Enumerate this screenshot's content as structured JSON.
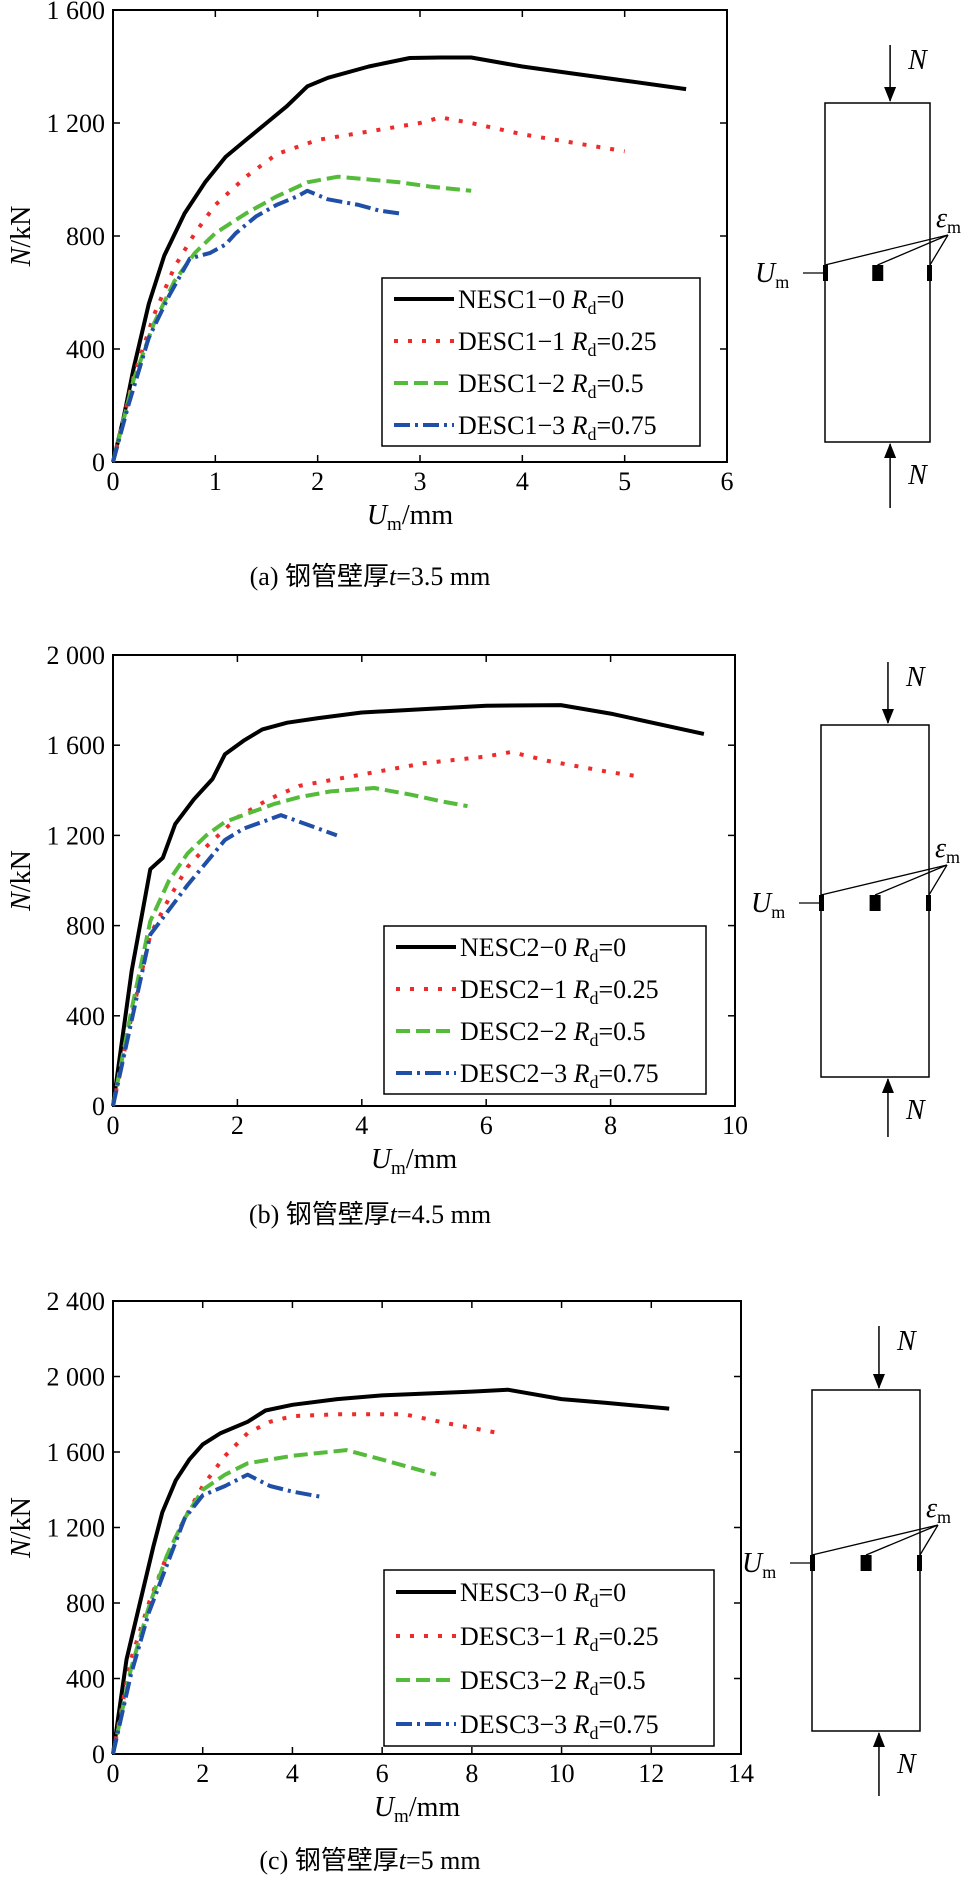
{
  "chart_data": [
    {
      "type": "line",
      "caption": {
        "prefix": "(a) 钢管壁厚",
        "var": "t",
        "suffix": "=3.5 mm"
      },
      "xlim": [
        0,
        6
      ],
      "ylim": [
        0,
        1600
      ],
      "xticks": [
        0,
        1,
        2,
        3,
        4,
        5,
        6
      ],
      "yticks": [
        0,
        400,
        800,
        1200,
        1600
      ],
      "ytick_labels": [
        "0",
        "400",
        "800",
        "1 200",
        "1 600"
      ],
      "xlabel": {
        "main": "U",
        "sub": "m",
        "rest": "/mm"
      },
      "ylabel": {
        "main": "N",
        "rest": "/kN"
      },
      "series": [
        {
          "name": "NESC1−0",
          "rd": "=0",
          "color": "#000000",
          "dash": "",
          "width": 4,
          "x": [
            0,
            0.1,
            0.2,
            0.35,
            0.5,
            0.7,
            0.9,
            1.1,
            1.3,
            1.5,
            1.7,
            1.9,
            2.1,
            2.5,
            2.9,
            3.2,
            3.5,
            4.0,
            4.5,
            5.0,
            5.6
          ],
          "y": [
            0,
            150,
            330,
            560,
            730,
            880,
            990,
            1080,
            1140,
            1200,
            1260,
            1330,
            1360,
            1400,
            1430,
            1432,
            1432,
            1400,
            1375,
            1350,
            1320
          ]
        },
        {
          "name": "DESC1−1",
          "rd": "=0.25",
          "color": "#ee2b2b",
          "dash": "4 10",
          "width": 4,
          "x": [
            0,
            0.2,
            0.4,
            0.6,
            0.8,
            1.0,
            1.3,
            1.6,
            2.0,
            2.5,
            3.0,
            3.2,
            3.5,
            4.0,
            4.5,
            5.0
          ],
          "y": [
            0,
            300,
            520,
            690,
            810,
            910,
            1010,
            1090,
            1140,
            1170,
            1200,
            1220,
            1200,
            1160,
            1130,
            1100
          ]
        },
        {
          "name": "DESC1−2",
          "rd": "=0.5",
          "color": "#55bb3a",
          "dash": "14 6",
          "width": 4,
          "x": [
            0,
            0.2,
            0.4,
            0.6,
            0.8,
            1.0,
            1.3,
            1.6,
            1.9,
            2.2,
            2.5,
            2.8,
            3.1,
            3.5
          ],
          "y": [
            0,
            290,
            490,
            640,
            740,
            810,
            880,
            940,
            990,
            1010,
            1000,
            990,
            975,
            960
          ]
        },
        {
          "name": "DESC1−3",
          "rd": "=0.75",
          "color": "#1f4fa6",
          "dash": "16 5 3 5",
          "width": 4,
          "x": [
            0,
            0.15,
            0.35,
            0.55,
            0.75,
            0.95,
            1.1,
            1.2,
            1.4,
            1.6,
            1.8,
            1.9,
            2.1,
            2.4,
            2.6,
            2.8
          ],
          "y": [
            0,
            200,
            440,
            590,
            720,
            740,
            770,
            810,
            870,
            910,
            940,
            960,
            930,
            910,
            890,
            880
          ]
        }
      ],
      "figure": {
        "force": "N",
        "um_main": "U",
        "um_sub": "m",
        "eps_main": "ε",
        "eps_sub": "m"
      }
    },
    {
      "type": "line",
      "caption": {
        "prefix": "(b) 钢管壁厚",
        "var": "t",
        "suffix": "=4.5 mm"
      },
      "xlim": [
        0,
        10
      ],
      "ylim": [
        0,
        2000
      ],
      "xticks": [
        0,
        2,
        4,
        6,
        8,
        10
      ],
      "yticks": [
        0,
        400,
        800,
        1200,
        1600,
        2000
      ],
      "ytick_labels": [
        "0",
        "400",
        "800",
        "1 200",
        "1 600",
        "2 000"
      ],
      "xlabel": {
        "main": "U",
        "sub": "m",
        "rest": "/mm"
      },
      "ylabel": {
        "main": "N",
        "rest": "/kN"
      },
      "series": [
        {
          "name": "NESC2−0",
          "rd": "=0",
          "color": "#000000",
          "dash": "",
          "width": 4,
          "x": [
            0,
            0.3,
            0.6,
            0.8,
            1.0,
            1.3,
            1.6,
            1.8,
            2.1,
            2.4,
            2.8,
            3.3,
            4.0,
            5.0,
            6.0,
            7.2,
            8.0,
            9.5
          ],
          "y": [
            0,
            600,
            1050,
            1100,
            1250,
            1360,
            1450,
            1560,
            1620,
            1670,
            1700,
            1720,
            1745,
            1760,
            1775,
            1778,
            1740,
            1650
          ]
        },
        {
          "name": "DESC2−1",
          "rd": "=0.25",
          "color": "#ee2b2b",
          "dash": "4 10",
          "width": 4,
          "x": [
            0,
            0.3,
            0.6,
            0.9,
            1.2,
            1.5,
            2.0,
            2.5,
            3.0,
            4.0,
            5.0,
            6.0,
            6.4,
            7.0,
            8.0,
            8.5
          ],
          "y": [
            0,
            400,
            760,
            920,
            1060,
            1150,
            1280,
            1360,
            1420,
            1470,
            1520,
            1550,
            1570,
            1530,
            1480,
            1460
          ]
        },
        {
          "name": "DESC2−2",
          "rd": "=0.5",
          "color": "#55bb3a",
          "dash": "14 6",
          "width": 4,
          "x": [
            0,
            0.3,
            0.6,
            0.9,
            1.2,
            1.5,
            1.8,
            2.2,
            2.6,
            3.0,
            3.5,
            4.2,
            4.8,
            5.3,
            5.7
          ],
          "y": [
            0,
            430,
            820,
            1000,
            1120,
            1200,
            1260,
            1300,
            1340,
            1370,
            1395,
            1410,
            1380,
            1350,
            1330
          ]
        },
        {
          "name": "DESC2−3",
          "rd": "=0.75",
          "color": "#1f4fa6",
          "dash": "16 5 3 5",
          "width": 4,
          "x": [
            0,
            0.3,
            0.6,
            0.9,
            1.2,
            1.5,
            1.8,
            2.1,
            2.4,
            2.7,
            3.0,
            3.3,
            3.6
          ],
          "y": [
            0,
            380,
            760,
            870,
            980,
            1080,
            1180,
            1230,
            1260,
            1290,
            1260,
            1230,
            1200
          ]
        }
      ],
      "figure": {
        "force": "N",
        "um_main": "U",
        "um_sub": "m",
        "eps_main": "ε",
        "eps_sub": "m"
      }
    },
    {
      "type": "line",
      "caption": {
        "prefix": "(c) 钢管壁厚",
        "var": "t",
        "suffix": "=5 mm"
      },
      "xlim": [
        0,
        14
      ],
      "ylim": [
        0,
        2400
      ],
      "xticks": [
        0,
        2,
        4,
        6,
        8,
        10,
        12,
        14
      ],
      "yticks": [
        0,
        400,
        800,
        1200,
        1600,
        2000,
        2400
      ],
      "ytick_labels": [
        "0",
        "400",
        "800",
        "1 200",
        "1 600",
        "2 000",
        "2 400"
      ],
      "xlabel": {
        "main": "U",
        "sub": "m",
        "rest": "/mm"
      },
      "ylabel": {
        "main": "N",
        "rest": "/kN"
      },
      "series": [
        {
          "name": "NESC3−0",
          "rd": "=0",
          "color": "#000000",
          "dash": "",
          "width": 4,
          "x": [
            0,
            0.3,
            0.6,
            0.9,
            1.1,
            1.4,
            1.7,
            2.0,
            2.4,
            3.0,
            3.4,
            4.0,
            5.0,
            6.0,
            7.0,
            8.0,
            8.8,
            10.0,
            11.0,
            12.4
          ],
          "y": [
            0,
            500,
            800,
            1100,
            1280,
            1450,
            1560,
            1640,
            1700,
            1760,
            1820,
            1850,
            1880,
            1900,
            1910,
            1920,
            1930,
            1880,
            1860,
            1830
          ]
        },
        {
          "name": "DESC3−1",
          "rd": "=0.25",
          "color": "#ee2b2b",
          "dash": "4 10",
          "width": 4,
          "x": [
            0,
            0.4,
            0.8,
            1.2,
            1.6,
            2.0,
            2.5,
            3.0,
            3.5,
            4.0,
            5.0,
            6.5,
            7.5,
            8.6
          ],
          "y": [
            0,
            500,
            800,
            1050,
            1250,
            1420,
            1580,
            1700,
            1760,
            1790,
            1800,
            1800,
            1750,
            1700
          ]
        },
        {
          "name": "DESC3−2",
          "rd": "=0.5",
          "color": "#55bb3a",
          "dash": "14 6",
          "width": 4,
          "x": [
            0,
            0.4,
            0.8,
            1.2,
            1.6,
            2.0,
            2.5,
            3.0,
            4.0,
            5.2,
            6.0,
            6.6,
            7.2
          ],
          "y": [
            0,
            450,
            780,
            1050,
            1250,
            1400,
            1480,
            1540,
            1580,
            1610,
            1560,
            1520,
            1480
          ]
        },
        {
          "name": "DESC3−3",
          "rd": "=0.75",
          "color": "#1f4fa6",
          "dash": "16 5 3 5",
          "width": 4,
          "x": [
            0,
            0.4,
            0.8,
            1.2,
            1.6,
            2.0,
            2.5,
            3.0,
            3.5,
            4.0,
            4.7
          ],
          "y": [
            0,
            420,
            750,
            1000,
            1250,
            1370,
            1420,
            1480,
            1420,
            1390,
            1360
          ]
        }
      ],
      "figure": {
        "force": "N",
        "um_main": "U",
        "um_sub": "m",
        "eps_main": "ε",
        "eps_sub": "m"
      }
    }
  ]
}
